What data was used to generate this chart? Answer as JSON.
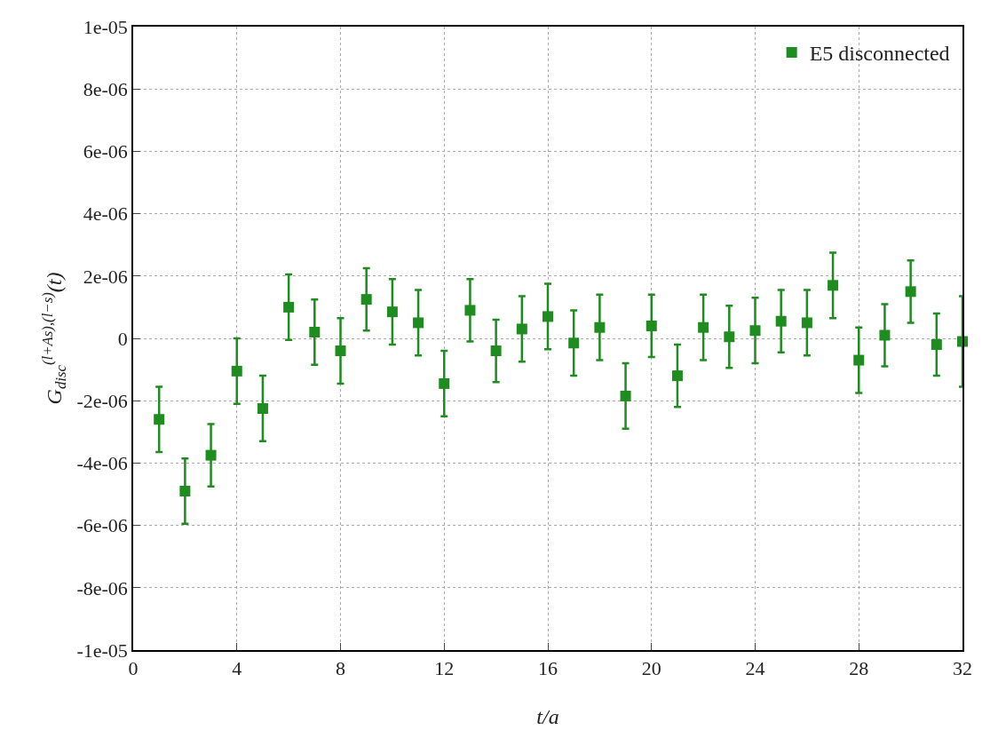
{
  "chart_data": {
    "type": "scatter",
    "xlabel": "t/a",
    "ylabel": "G$_{disc}$$^{(l+As),(l−s)}$(t)",
    "x": [
      1,
      2,
      3,
      4,
      5,
      6,
      7,
      8,
      9,
      10,
      11,
      12,
      13,
      14,
      15,
      16,
      17,
      18,
      19,
      20,
      21,
      22,
      23,
      24,
      25,
      26,
      27,
      28,
      29,
      30,
      31,
      32
    ],
    "series": [
      {
        "name": "E5 disconnected",
        "color": "#1e8c1e",
        "values": [
          -2.6e-06,
          -4.9e-06,
          -3.75e-06,
          -1.05e-06,
          -2.25e-06,
          1e-06,
          2e-07,
          -4e-07,
          1.25e-06,
          8.5e-07,
          5e-07,
          -1.45e-06,
          9e-07,
          -4e-07,
          3e-07,
          7e-07,
          -1.5e-07,
          3.5e-07,
          -1.85e-06,
          4e-07,
          -1.2e-06,
          3.5e-07,
          5e-08,
          2.5e-07,
          5.5e-07,
          5e-07,
          1.7e-06,
          -7e-07,
          1e-07,
          1.5e-06,
          -2e-07,
          -1e-07
        ],
        "errors": [
          1.05e-06,
          1.05e-06,
          1e-06,
          1.05e-06,
          1.05e-06,
          1.05e-06,
          1.05e-06,
          1.05e-06,
          1e-06,
          1.05e-06,
          1.05e-06,
          1.05e-06,
          1e-06,
          1e-06,
          1.05e-06,
          1.05e-06,
          1.05e-06,
          1.05e-06,
          1.05e-06,
          1e-06,
          1e-06,
          1.05e-06,
          1e-06,
          1.05e-06,
          1e-06,
          1.05e-06,
          1.05e-06,
          1.05e-06,
          1e-06,
          1e-06,
          1e-06,
          1.45e-06
        ]
      }
    ],
    "xlim": [
      0,
      32
    ],
    "xticks": [
      0,
      4,
      8,
      12,
      16,
      20,
      24,
      28,
      32
    ],
    "ylim": [
      -1e-05,
      1e-05
    ],
    "yticks": [
      {
        "value": -1e-05,
        "label": "-1e-05"
      },
      {
        "value": -8e-06,
        "label": "-8e-06"
      },
      {
        "value": -6e-06,
        "label": "-6e-06"
      },
      {
        "value": -4e-06,
        "label": "-4e-06"
      },
      {
        "value": -2e-06,
        "label": "-2e-06"
      },
      0,
      {
        "value": 2e-06,
        "label": "2e-06"
      },
      {
        "value": 4e-06,
        "label": "4e-06"
      },
      {
        "value": 6e-06,
        "label": "6e-06"
      },
      {
        "value": 8e-06,
        "label": "8e-06"
      },
      {
        "value": 1e-05,
        "label": "1e-05"
      }
    ],
    "grid": true,
    "legend": "top right",
    "marker": "square"
  }
}
